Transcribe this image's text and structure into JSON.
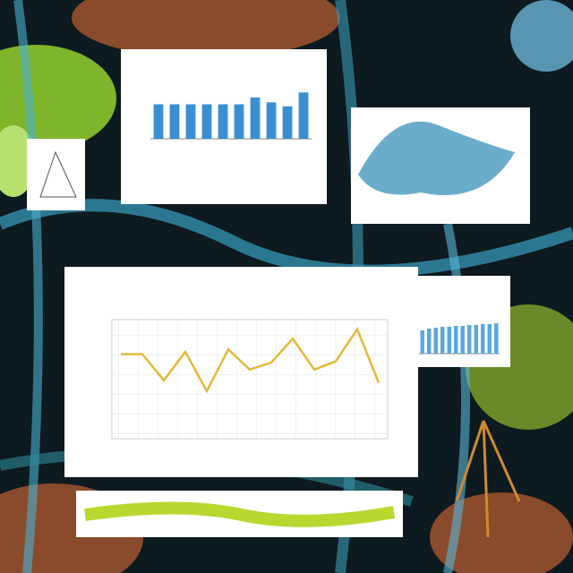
{
  "chart_data": [
    {
      "type": "bar",
      "color": "#3a8fd0",
      "ylim": [
        0,
        50
      ],
      "values": [
        35,
        35,
        35,
        35,
        35,
        35,
        42,
        37,
        33,
        47
      ]
    },
    {
      "type": "line",
      "color": "#e2b93a",
      "ylim": [
        0,
        100
      ],
      "grid": true,
      "values": [
        71,
        71,
        49,
        73,
        40,
        75,
        58,
        64,
        84,
        58,
        65,
        92,
        47
      ]
    },
    {
      "type": "bar",
      "color": "#5aa8dc",
      "ylim": [
        0,
        40
      ],
      "values": [
        26,
        28,
        29,
        30,
        30,
        31,
        31,
        32,
        32,
        33,
        33,
        34
      ]
    }
  ]
}
